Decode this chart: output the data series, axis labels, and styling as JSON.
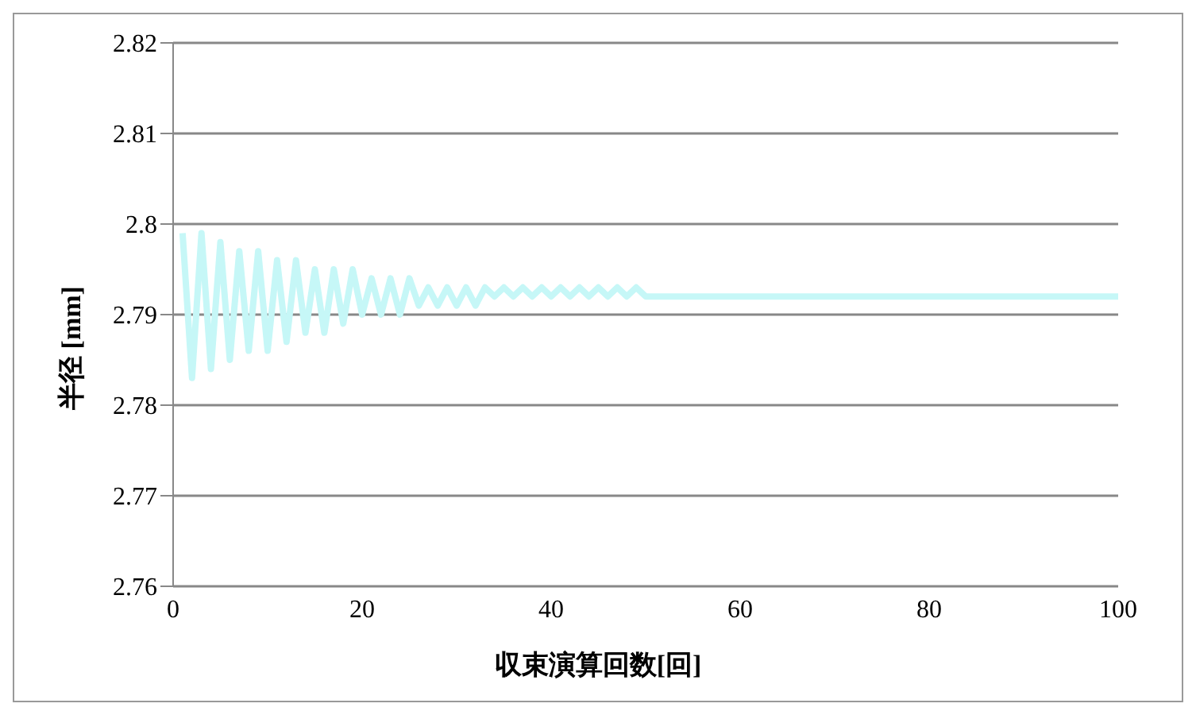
{
  "chart_data": {
    "type": "line",
    "xlabel": "収束演算回数[回]",
    "ylabel": "半径 [mm]",
    "x": [
      1,
      2,
      3,
      4,
      5,
      6,
      7,
      8,
      9,
      10,
      11,
      12,
      13,
      14,
      15,
      16,
      17,
      18,
      19,
      20,
      21,
      22,
      23,
      24,
      25,
      26,
      27,
      28,
      29,
      30,
      31,
      32,
      33,
      34,
      35,
      36,
      37,
      38,
      39,
      40,
      41,
      42,
      43,
      44,
      45,
      46,
      47,
      48,
      49,
      50,
      60,
      70,
      80,
      90,
      100
    ],
    "series": [
      {
        "color": "#c6f7f7",
        "values": [
          2.799,
          2.783,
          2.799,
          2.784,
          2.798,
          2.785,
          2.797,
          2.786,
          2.797,
          2.786,
          2.796,
          2.787,
          2.796,
          2.788,
          2.795,
          2.788,
          2.795,
          2.789,
          2.795,
          2.79,
          2.794,
          2.79,
          2.794,
          2.79,
          2.794,
          2.791,
          2.793,
          2.791,
          2.793,
          2.791,
          2.793,
          2.791,
          2.793,
          2.792,
          2.793,
          2.792,
          2.793,
          2.792,
          2.793,
          2.792,
          2.793,
          2.792,
          2.793,
          2.792,
          2.793,
          2.792,
          2.793,
          2.792,
          2.793,
          2.792,
          2.792,
          2.792,
          2.792,
          2.792,
          2.792
        ]
      }
    ],
    "xlim": [
      0,
      100
    ],
    "xticks": [
      0,
      20,
      40,
      60,
      80,
      100
    ],
    "ylim": [
      2.76,
      2.82
    ],
    "yticks": [
      2.76,
      2.77,
      2.78,
      2.79,
      2.8,
      2.81,
      2.82
    ],
    "grid": "y",
    "legend": false,
    "marker": "none",
    "line_style": "solid"
  }
}
